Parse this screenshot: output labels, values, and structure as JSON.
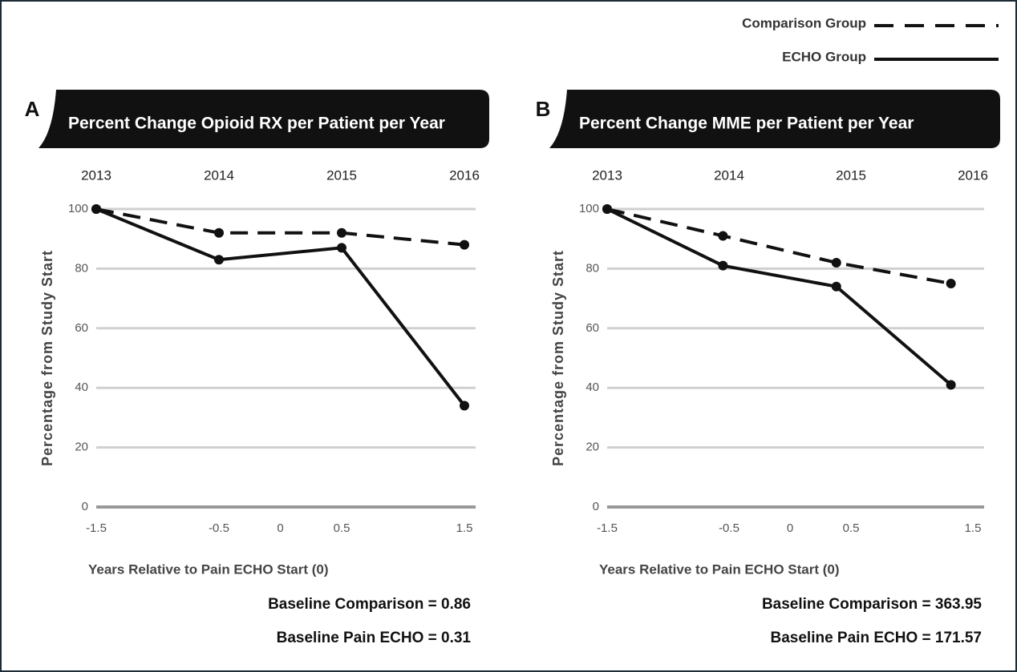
{
  "chart_data": [
    {
      "type": "line",
      "panel": "A",
      "title": "Percent Change Opioid RX per Patient per Year",
      "y_label": "Percentage from Study Start",
      "x_label": "Years Relative to Pain ECHO Start (0)",
      "annotations": [
        "Baseline Comparison = 0.86",
        "Baseline Pain ECHO = 0.31"
      ],
      "xlim": [
        -1.5,
        1.5
      ],
      "xticks": [
        -1.5,
        -0.5,
        0,
        0.5,
        1.5
      ],
      "x2ticks": [
        {
          "value": -1.5,
          "label": "2013"
        },
        {
          "value": -0.5,
          "label": "2014"
        },
        {
          "value": 0.5,
          "label": "2015"
        },
        {
          "value": 1.5,
          "label": "2016"
        }
      ],
      "ylim": [
        0,
        100
      ],
      "yticks": [
        0,
        20,
        40,
        60,
        80,
        100
      ],
      "grid": true,
      "x": [
        -1.5,
        -0.5,
        0.5,
        1.5
      ],
      "series": [
        {
          "color": "#111111",
          "dash": true,
          "values": [
            100,
            92,
            92,
            88
          ]
        },
        {
          "color": "#111111",
          "dash": false,
          "values": [
            100,
            83,
            87,
            34
          ]
        }
      ]
    },
    {
      "type": "line",
      "panel": "B",
      "title": "Percent Change MME per Patient per Year",
      "y_label": "Percentage from Study Start",
      "x_label": "Years Relative to Pain ECHO Start (0)",
      "annotations": [
        "Baseline Comparison = 363.95",
        "Baseline Pain ECHO = 171.57"
      ],
      "xlim": [
        -1.5,
        1.5
      ],
      "xticks": [
        -1.5,
        -0.5,
        0,
        0.5,
        1.5
      ],
      "x2ticks": [
        {
          "value": -1.5,
          "label": "2013"
        },
        {
          "value": -0.5,
          "label": "2014"
        },
        {
          "value": 0.5,
          "label": "2015"
        },
        {
          "value": 1.5,
          "label": "2016"
        }
      ],
      "ylim": [
        0,
        100
      ],
      "yticks": [
        0,
        20,
        40,
        60,
        80,
        100
      ],
      "grid": true,
      "legend": "top-right",
      "x": [
        -1.5,
        -0.55,
        0.38,
        1.32
      ],
      "series": [
        {
          "name": "Comparison Group",
          "color": "#111111",
          "dash": true,
          "values": [
            100,
            91,
            82,
            75
          ]
        },
        {
          "name": "ECHO Group",
          "color": "#111111",
          "dash": false,
          "values": [
            100,
            81,
            74,
            41
          ]
        }
      ]
    }
  ]
}
